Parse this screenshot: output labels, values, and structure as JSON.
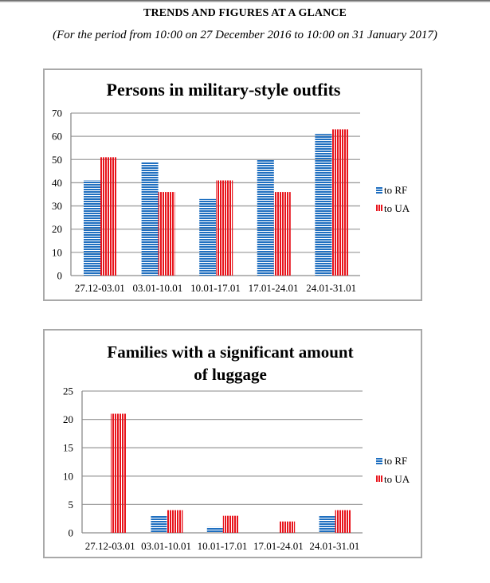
{
  "page": {
    "title": "TRENDS AND FIGURES AT A GLANCE",
    "subtitle": "(For the period from 10:00 on 27 December 2016 to 10:00 on 31 January 2017)"
  },
  "colors": {
    "to_rf": "#1f6fc0",
    "to_ua": "#e8141c",
    "grid": "#a0a0a0",
    "frame": "#a9a9a9"
  },
  "chart_data": [
    {
      "type": "bar",
      "title": "Persons in military-style outfits",
      "title_lines": [
        "Persons in military-style outfits"
      ],
      "xlabel": "",
      "ylabel": "",
      "categories": [
        "27.12-03.01",
        "03.01-10.01",
        "10.01-17.01",
        "17.01-24.01",
        "24.01-31.01"
      ],
      "series": [
        {
          "name": "to RF",
          "pattern": "horizontal-stripes",
          "values": [
            41,
            49,
            33,
            50,
            61
          ]
        },
        {
          "name": "to UA",
          "pattern": "vertical-stripes",
          "values": [
            51,
            36,
            41,
            36,
            63
          ]
        }
      ],
      "ylim": [
        0,
        70
      ],
      "yticks": [
        0,
        10,
        20,
        30,
        40,
        50,
        60,
        70
      ],
      "grid": true,
      "legend": {
        "position": "right",
        "entries": [
          "to RF",
          "to UA"
        ]
      }
    },
    {
      "type": "bar",
      "title": "Families with a significant amount of luggage",
      "title_lines": [
        "Families with a significant amount",
        "of luggage"
      ],
      "xlabel": "",
      "ylabel": "",
      "categories": [
        "27.12-03.01",
        "03.01-10.01",
        "10.01-17.01",
        "17.01-24.01",
        "24.01-31.01"
      ],
      "series": [
        {
          "name": "to RF",
          "pattern": "horizontal-stripes",
          "values": [
            0,
            3,
            1,
            0,
            3
          ]
        },
        {
          "name": "to UA",
          "pattern": "vertical-stripes",
          "values": [
            21,
            4,
            3,
            2,
            4
          ]
        }
      ],
      "ylim": [
        0,
        25
      ],
      "yticks": [
        0,
        5,
        10,
        15,
        20,
        25
      ],
      "grid": true,
      "legend": {
        "position": "right",
        "entries": [
          "to RF",
          "to UA"
        ]
      }
    }
  ]
}
